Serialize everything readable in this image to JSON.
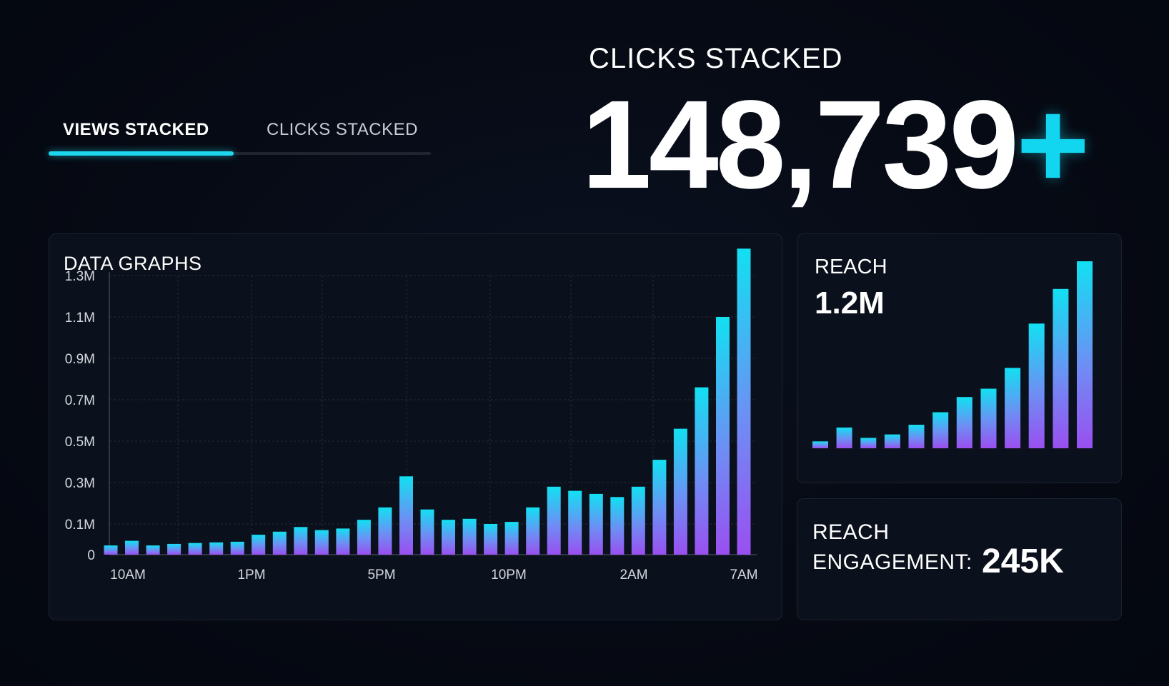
{
  "tabs": [
    {
      "label": "VIEWS STACKED",
      "active": true
    },
    {
      "label": "CLICKS STACKED",
      "active": false
    }
  ],
  "hero": {
    "label": "CLICKS STACKED",
    "value": "148,739",
    "suffix": "+"
  },
  "main_panel": {
    "title": "DATA GRAPHS"
  },
  "reach_panel": {
    "label": "REACH",
    "value": "1.2M"
  },
  "engagement_panel": {
    "line1": "REACH",
    "line2": "ENGAGEMENT:",
    "value": "245K"
  },
  "colors": {
    "background": "#050912",
    "accent": "#12d6f0",
    "bar_top": "#12e0f2",
    "bar_bottom": "#9a4ff0",
    "panel_bg": "#0b111c",
    "panel_border": "#1b2230"
  },
  "chart_data": [
    {
      "type": "bar",
      "title": "DATA GRAPHS",
      "xlabel": "",
      "ylabel": "",
      "y_ticks": [
        "0",
        "0.1M",
        "0.3M",
        "0.5M",
        "0.7M",
        "0.9M",
        "1.1M",
        "1.3M"
      ],
      "x_ticks": [
        "10AM",
        "1PM",
        "5PM",
        "10PM",
        "2AM",
        "7AM"
      ],
      "grid": true,
      "values": [
        0.03,
        0.045,
        0.03,
        0.035,
        0.038,
        0.04,
        0.042,
        0.065,
        0.075,
        0.09,
        0.08,
        0.085,
        0.12,
        0.18,
        0.33,
        0.17,
        0.12,
        0.125,
        0.1,
        0.11,
        0.18,
        0.28,
        0.26,
        0.245,
        0.23,
        0.28,
        0.41,
        0.56,
        0.76,
        1.1,
        1.43
      ],
      "unit": "M"
    },
    {
      "type": "bar",
      "title": "REACH",
      "values": [
        0.1,
        0.3,
        0.15,
        0.2,
        0.34,
        0.52,
        0.74,
        0.86,
        1.16,
        1.8,
        2.3,
        2.7
      ]
    }
  ]
}
